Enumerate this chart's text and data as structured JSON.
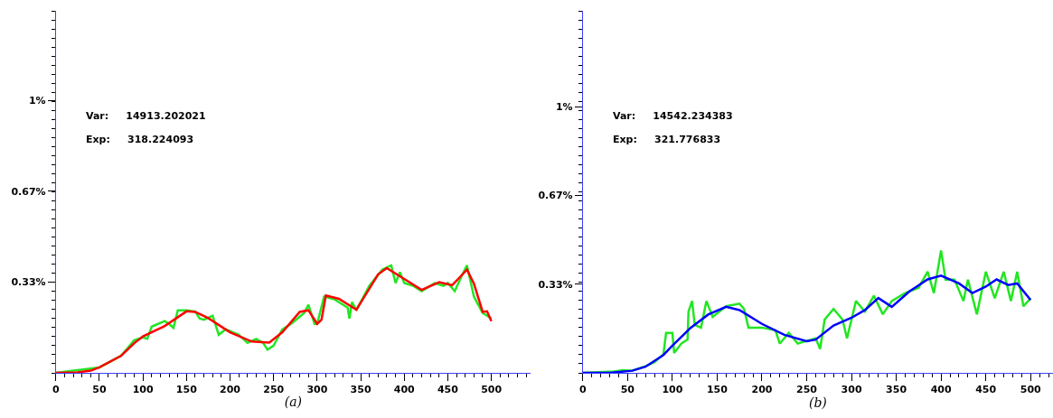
{
  "chart_data": [
    {
      "type": "line",
      "xlabel": "(a)",
      "xlim": [
        0,
        545
      ],
      "ylim": [
        0,
        1.33
      ],
      "xticks": [
        0,
        50,
        100,
        150,
        200,
        250,
        300,
        350,
        400,
        450,
        500
      ],
      "yticks": [
        {
          "value": 0.333,
          "label": "0.33%"
        },
        {
          "value": 0.667,
          "label": "0.67%"
        },
        {
          "value": 1,
          "label": "1%"
        }
      ],
      "annotations": [
        "Var:     14913.202021",
        "Exp:     318.224093"
      ],
      "series": [
        {
          "color": "#22e622",
          "x": [
            0,
            50,
            75,
            90,
            100,
            105,
            110,
            125,
            130,
            135,
            140,
            150,
            160,
            165,
            170,
            180,
            187,
            195,
            210,
            220,
            230,
            238,
            243,
            250,
            260,
            270,
            285,
            290,
            297,
            300,
            308,
            320,
            335,
            337,
            340,
            345,
            360,
            375,
            385,
            390,
            395,
            400,
            410,
            420,
            435,
            445,
            450,
            458,
            465,
            472,
            480,
            485,
            490,
            500
          ],
          "values": [
            0,
            0.02,
            0.063,
            0.12,
            0.13,
            0.125,
            0.17,
            0.19,
            0.18,
            0.165,
            0.23,
            0.23,
            0.225,
            0.2,
            0.195,
            0.21,
            0.14,
            0.16,
            0.14,
            0.11,
            0.125,
            0.11,
            0.085,
            0.1,
            0.16,
            0.18,
            0.22,
            0.25,
            0.18,
            0.18,
            0.28,
            0.27,
            0.24,
            0.2,
            0.26,
            0.23,
            0.32,
            0.38,
            0.395,
            0.33,
            0.37,
            0.33,
            0.32,
            0.3,
            0.33,
            0.32,
            0.33,
            0.3,
            0.35,
            0.395,
            0.28,
            0.25,
            0.22,
            0.2
          ]
        },
        {
          "color": "#ff0000",
          "x": [
            0,
            25,
            40,
            50,
            75,
            90,
            100,
            125,
            150,
            160,
            175,
            200,
            225,
            245,
            260,
            280,
            290,
            300,
            305,
            310,
            325,
            345,
            360,
            370,
            380,
            400,
            420,
            440,
            455,
            472,
            480,
            490,
            495,
            500
          ],
          "values": [
            0,
            0.002,
            0.008,
            0.02,
            0.063,
            0.109,
            0.134,
            0.172,
            0.226,
            0.224,
            0.201,
            0.149,
            0.115,
            0.111,
            0.149,
            0.224,
            0.23,
            0.18,
            0.195,
            0.284,
            0.272,
            0.232,
            0.31,
            0.362,
            0.385,
            0.345,
            0.305,
            0.333,
            0.322,
            0.379,
            0.328,
            0.224,
            0.226,
            0.19
          ]
        }
      ]
    },
    {
      "type": "line",
      "xlabel": "(b)",
      "xlim": [
        0,
        525
      ],
      "ylim": [
        0,
        1.36
      ],
      "xticks": [
        0,
        50,
        100,
        150,
        200,
        250,
        300,
        350,
        400,
        450,
        500
      ],
      "yticks": [
        {
          "value": 0.333,
          "label": "0.33%"
        },
        {
          "value": 0.667,
          "label": "0.67%"
        },
        {
          "value": 1,
          "label": "1%"
        }
      ],
      "annotations": [
        "Var:     14542.234383",
        "Exp:     321.776833"
      ],
      "series": [
        {
          "color": "#22e622",
          "x": [
            0,
            35,
            45,
            55,
            70,
            80,
            90,
            93,
            100,
            102,
            110,
            117,
            118,
            122,
            125,
            132,
            138,
            145,
            160,
            175,
            180,
            185,
            200,
            215,
            220,
            230,
            240,
            250,
            260,
            265,
            270,
            280,
            290,
            295,
            300,
            305,
            315,
            325,
            335,
            345,
            360,
            375,
            385,
            392,
            400,
            405,
            415,
            425,
            430,
            440,
            450,
            460,
            470,
            478,
            485,
            492,
            500
          ],
          "values": [
            0,
            0.005,
            0.01,
            0.008,
            0.025,
            0.04,
            0.07,
            0.15,
            0.15,
            0.075,
            0.11,
            0.125,
            0.23,
            0.27,
            0.18,
            0.17,
            0.27,
            0.21,
            0.25,
            0.26,
            0.24,
            0.17,
            0.17,
            0.16,
            0.11,
            0.15,
            0.11,
            0.12,
            0.13,
            0.09,
            0.2,
            0.24,
            0.2,
            0.13,
            0.2,
            0.27,
            0.23,
            0.29,
            0.22,
            0.27,
            0.3,
            0.32,
            0.38,
            0.3,
            0.46,
            0.35,
            0.35,
            0.27,
            0.35,
            0.22,
            0.38,
            0.28,
            0.38,
            0.27,
            0.38,
            0.25,
            0.28
          ]
        },
        {
          "color": "#0000ff",
          "x": [
            0,
            30,
            55,
            70,
            90,
            100,
            120,
            140,
            160,
            175,
            200,
            225,
            250,
            260,
            280,
            300,
            315,
            330,
            345,
            365,
            385,
            400,
            420,
            435,
            450,
            462,
            475,
            485,
            500
          ],
          "values": [
            0,
            0,
            0.008,
            0.023,
            0.067,
            0.102,
            0.168,
            0.219,
            0.248,
            0.236,
            0.184,
            0.143,
            0.119,
            0.125,
            0.178,
            0.207,
            0.236,
            0.281,
            0.248,
            0.307,
            0.351,
            0.365,
            0.336,
            0.3,
            0.324,
            0.351,
            0.33,
            0.336,
            0.274
          ]
        }
      ]
    }
  ]
}
